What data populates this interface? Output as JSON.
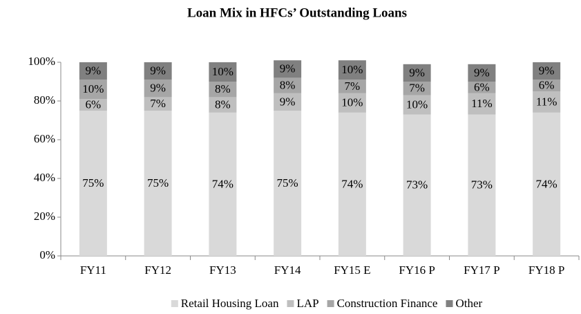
{
  "chart_data": {
    "type": "stacked_bar",
    "title": "Loan Mix in HFCs’ Outstanding Loans",
    "categories": [
      "FY11",
      "FY12",
      "FY13",
      "FY14",
      "FY15 E",
      "FY16 P",
      "FY17 P",
      "FY18 P"
    ],
    "series": [
      {
        "name": "Retail Housing Loan",
        "color": "#d9d9d9",
        "values": [
          75,
          75,
          74,
          75,
          74,
          73,
          73,
          74
        ],
        "value_labels": [
          "75%",
          "75%",
          "74%",
          "75%",
          "74%",
          "73%",
          "73%",
          "74%"
        ]
      },
      {
        "name": "LAP",
        "color": "#bfbfbf",
        "values": [
          6,
          7,
          8,
          9,
          10,
          10,
          11,
          11
        ],
        "value_labels": [
          "6%",
          "7%",
          "8%",
          "9%",
          "10%",
          "10%",
          "11%",
          "11%"
        ]
      },
      {
        "name": "Construction Finance",
        "color": "#a6a6a6",
        "values": [
          10,
          9,
          8,
          8,
          7,
          7,
          6,
          6
        ],
        "value_labels": [
          "10%",
          "9%",
          "8%",
          "8%",
          "7%",
          "7%",
          "6%",
          "6%"
        ]
      },
      {
        "name": "Other",
        "color": "#808080",
        "values": [
          9,
          9,
          10,
          9,
          10,
          9,
          9,
          9
        ],
        "value_labels": [
          "9%",
          "9%",
          "10%",
          "9%",
          "10%",
          "9%",
          "9%",
          "9%"
        ]
      }
    ],
    "ylim": [
      0,
      100
    ],
    "yticks": [
      {
        "value": 0,
        "label": "0%"
      },
      {
        "value": 20,
        "label": "20%"
      },
      {
        "value": 40,
        "label": "40%"
      },
      {
        "value": 60,
        "label": "60%"
      },
      {
        "value": 80,
        "label": "80%"
      },
      {
        "value": 100,
        "label": "100%"
      }
    ],
    "legend": "bottom"
  }
}
